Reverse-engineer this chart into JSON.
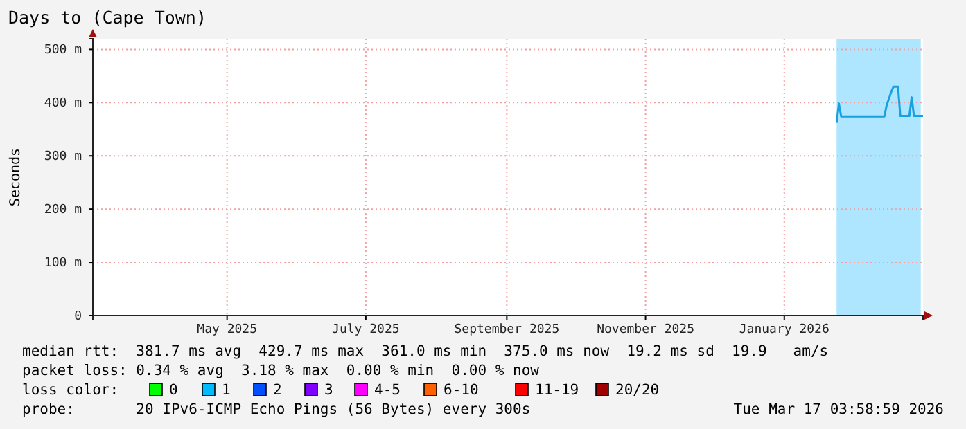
{
  "chart_data": {
    "type": "line",
    "title": "Days to (Cape Town)",
    "ylabel": "Seconds",
    "x": [
      "2026-02-07",
      "2026-02-08",
      "2026-02-09",
      "2026-02-28",
      "2026-03-01",
      "2026-03-03",
      "2026-03-04",
      "2026-03-06",
      "2026-03-07",
      "2026-03-11",
      "2026-03-12",
      "2026-03-13",
      "2026-03-17"
    ],
    "series": [
      {
        "color": "#1a9fe0",
        "values": [
          362,
          398,
          374,
          374,
          395,
          420,
          430,
          430,
          375,
          375,
          410,
          375,
          375
        ]
      }
    ],
    "xlim": [
      "2025-03-17",
      "2026-03-17"
    ],
    "xticks": [
      {
        "value": "2025-05-15",
        "label": "May 2025"
      },
      {
        "value": "2025-07-15",
        "label": "July 2025"
      },
      {
        "value": "2025-09-15",
        "label": "September 2025"
      },
      {
        "value": "2025-11-15",
        "label": "November 2025"
      },
      {
        "value": "2026-01-15",
        "label": "January 2026"
      }
    ],
    "ylim": [
      0,
      520
    ],
    "yticks": [
      0,
      {
        "value": 100,
        "label": "100 m"
      },
      {
        "value": 200,
        "label": "200 m"
      },
      {
        "value": 300,
        "label": "300 m"
      },
      {
        "value": 400,
        "label": "400 m"
      },
      {
        "value": 500,
        "label": "500 m"
      }
    ],
    "grid": true,
    "bands": [
      {
        "axis": "x",
        "from": "2026-02-07",
        "to": "2026-03-16",
        "color": "#aee6ff"
      }
    ],
    "annotations": [
      "median rtt:  381.7 ms avg  429.7 ms max  361.0 ms min  375.0 ms now  19.2 ms sd  19.9   am/s",
      "packet loss: 0.34 % avg  3.18 % max  0.00 % min  0.00 % now",
      "loss color:",
      "0",
      "1",
      "2",
      "3",
      "4-5",
      "6-10",
      "11-19",
      "20/20",
      "probe:       20 IPv6-ICMP Echo Pings (56 Bytes) every 300s",
      "Tue Mar 17 03:58:59 2026"
    ]
  }
}
